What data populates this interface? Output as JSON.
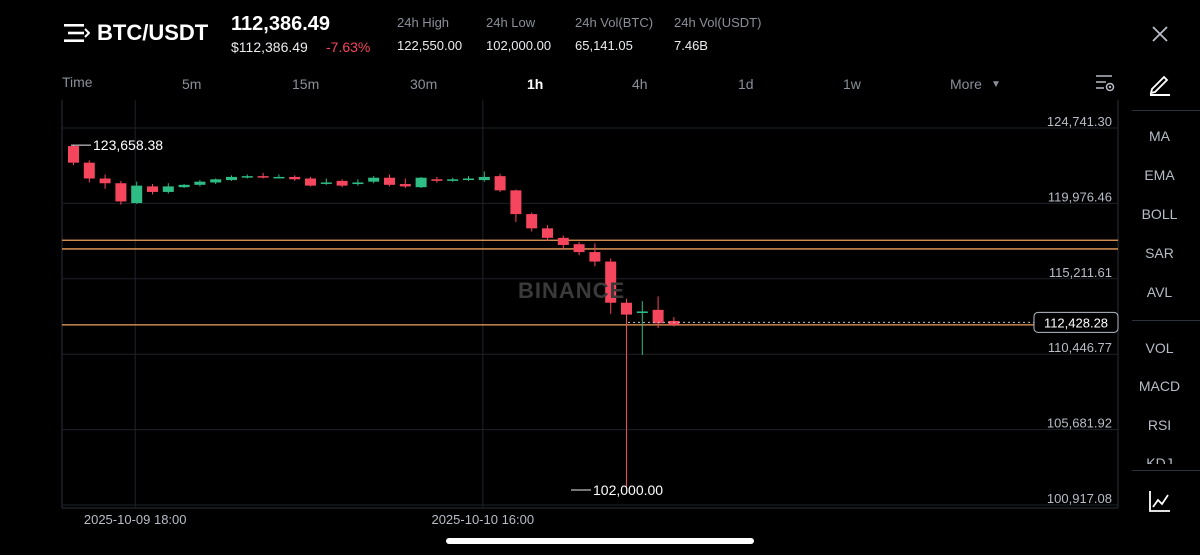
{
  "header": {
    "pair": "BTC/USDT",
    "last_price": "112,386.49",
    "fiat_price": "$112,386.49",
    "change_pct": "-7.63%",
    "stats": [
      {
        "label": "24h High",
        "value": "122,550.00"
      },
      {
        "label": "24h Low",
        "value": "102,000.00"
      },
      {
        "label": "24h Vol(BTC)",
        "value": "65,141.05"
      },
      {
        "label": "24h Vol(USDT)",
        "value": "7.46B"
      }
    ]
  },
  "intervals": {
    "items": [
      "Time",
      "5m",
      "15m",
      "30m",
      "1h",
      "4h",
      "1d",
      "1w",
      "More"
    ],
    "active": "1h"
  },
  "indicators": [
    "MA",
    "EMA",
    "BOLL",
    "SAR",
    "AVL",
    "VOL",
    "MACD",
    "RSI",
    "KDJ"
  ],
  "watermark": "BINANCE",
  "colors": {
    "up": "#2ebd85",
    "down": "#f6465d",
    "hline": "#f0a15a",
    "grid": "#1e2329"
  },
  "chart_data": {
    "type": "candlestick",
    "price_ticks": [
      "124,741.30",
      "119,976.46",
      "115,211.61",
      "110,446.77",
      "105,681.92",
      "100,917.08"
    ],
    "price_tick_values": [
      124741.3,
      119976.46,
      115211.61,
      110446.77,
      105681.92,
      100917.08
    ],
    "time_labels": [
      {
        "label": "2025-10-09 18:00",
        "index": 4
      },
      {
        "label": "2025-10-10 16:00",
        "index": 26
      }
    ],
    "high_annotation": {
      "label": "123,658.38",
      "value": 123658.38,
      "index": 0
    },
    "low_annotation": {
      "label": "102,000.00",
      "value": 102000.0,
      "index": 32
    },
    "current_price": {
      "label": "112,428.28",
      "value": 112428.28
    },
    "horizontal_lines": [
      117650,
      117100,
      112300
    ],
    "candles": [
      {
        "o": 123600,
        "h": 123658,
        "c": 122550,
        "l": 122400
      },
      {
        "o": 122550,
        "h": 122700,
        "c": 121550,
        "l": 121300
      },
      {
        "o": 121550,
        "h": 121800,
        "c": 121250,
        "l": 120900
      },
      {
        "o": 121250,
        "h": 121400,
        "c": 120100,
        "l": 119900
      },
      {
        "o": 120000,
        "h": 121350,
        "c": 121100,
        "l": 119950
      },
      {
        "o": 121050,
        "h": 121200,
        "c": 120700,
        "l": 120550
      },
      {
        "o": 120700,
        "h": 121250,
        "c": 121050,
        "l": 120600
      },
      {
        "o": 121000,
        "h": 121200,
        "c": 121150,
        "l": 120950
      },
      {
        "o": 121150,
        "h": 121450,
        "c": 121350,
        "l": 121050
      },
      {
        "o": 121300,
        "h": 121550,
        "c": 121500,
        "l": 121200
      },
      {
        "o": 121450,
        "h": 121750,
        "c": 121650,
        "l": 121400
      },
      {
        "o": 121650,
        "h": 121800,
        "c": 121700,
        "l": 121550
      },
      {
        "o": 121700,
        "h": 121900,
        "c": 121650,
        "l": 121550
      },
      {
        "o": 121650,
        "h": 121800,
        "c": 121650,
        "l": 121550
      },
      {
        "o": 121650,
        "h": 121750,
        "c": 121500,
        "l": 121400
      },
      {
        "o": 121550,
        "h": 121650,
        "c": 121100,
        "l": 121050
      },
      {
        "o": 121250,
        "h": 121550,
        "c": 121300,
        "l": 121150
      },
      {
        "o": 121400,
        "h": 121500,
        "c": 121100,
        "l": 121000
      },
      {
        "o": 121200,
        "h": 121500,
        "c": 121300,
        "l": 121100
      },
      {
        "o": 121350,
        "h": 121700,
        "c": 121600,
        "l": 121250
      },
      {
        "o": 121600,
        "h": 121800,
        "c": 121150,
        "l": 121050
      },
      {
        "o": 121200,
        "h": 121550,
        "c": 121050,
        "l": 120950
      },
      {
        "o": 121000,
        "h": 121650,
        "c": 121600,
        "l": 120950
      },
      {
        "o": 121500,
        "h": 121650,
        "c": 121400,
        "l": 121300
      },
      {
        "o": 121400,
        "h": 121600,
        "c": 121500,
        "l": 121350
      },
      {
        "o": 121500,
        "h": 121700,
        "c": 121550,
        "l": 121400
      },
      {
        "o": 121450,
        "h": 122000,
        "c": 121650,
        "l": 121350
      },
      {
        "o": 121700,
        "h": 121850,
        "c": 120800,
        "l": 120700
      },
      {
        "o": 120800,
        "h": 120850,
        "c": 119300,
        "l": 118800
      },
      {
        "o": 119300,
        "h": 119400,
        "c": 118400,
        "l": 118200
      },
      {
        "o": 118400,
        "h": 118600,
        "c": 117800,
        "l": 117600
      },
      {
        "o": 117800,
        "h": 117950,
        "c": 117350,
        "l": 117100
      },
      {
        "o": 117400,
        "h": 117550,
        "c": 116900,
        "l": 116700
      },
      {
        "o": 116900,
        "h": 117450,
        "c": 116300,
        "l": 116000
      },
      {
        "o": 116300,
        "h": 116500,
        "c": 113700,
        "l": 113000
      },
      {
        "o": 113700,
        "h": 113950,
        "c": 112950,
        "l": 102000
      },
      {
        "o": 113050,
        "h": 113800,
        "c": 113150,
        "l": 110400
      },
      {
        "o": 113250,
        "h": 114100,
        "c": 112400,
        "l": 112100
      },
      {
        "o": 112550,
        "h": 112800,
        "c": 112300,
        "l": 112200
      }
    ]
  }
}
